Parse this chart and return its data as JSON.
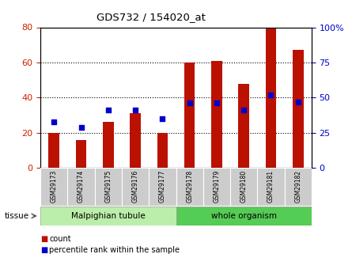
{
  "title": "GDS732 / 154020_at",
  "samples": [
    "GSM29173",
    "GSM29174",
    "GSM29175",
    "GSM29176",
    "GSM29177",
    "GSM29178",
    "GSM29179",
    "GSM29180",
    "GSM29181",
    "GSM29182"
  ],
  "counts": [
    20,
    16,
    26,
    31,
    20,
    60,
    61,
    48,
    80,
    67
  ],
  "percentiles": [
    33,
    29,
    41,
    41,
    35,
    46,
    46,
    41,
    52,
    47
  ],
  "bar_color": "#bb1100",
  "dot_color": "#0000cc",
  "ylim_left": [
    0,
    80
  ],
  "ylim_right": [
    0,
    100
  ],
  "yticks_left": [
    0,
    20,
    40,
    60,
    80
  ],
  "yticks_right": [
    0,
    25,
    50,
    75,
    100
  ],
  "tissue_groups": [
    {
      "label": "Malpighian tubule",
      "start": 0,
      "end": 5,
      "color": "#bbeeaa"
    },
    {
      "label": "whole organism",
      "start": 5,
      "end": 10,
      "color": "#55cc55"
    }
  ],
  "tissue_label": "tissue",
  "legend_count": "count",
  "legend_percentile": "percentile rank within the sample",
  "tick_label_color_left": "#cc2200",
  "tick_label_color_right": "#0000cc",
  "bg_xtick": "#cccccc",
  "frame_color": "#000000"
}
